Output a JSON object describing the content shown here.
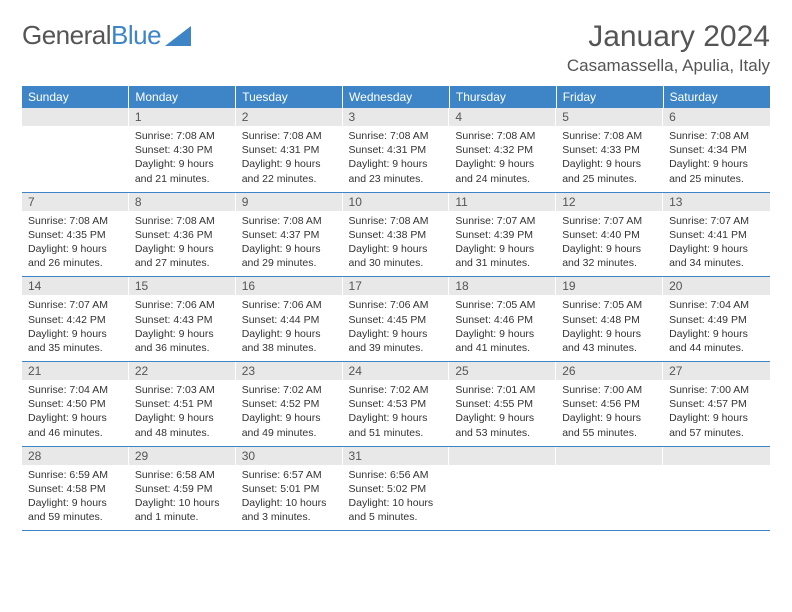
{
  "logo": {
    "text1": "General",
    "text2": "Blue"
  },
  "header": {
    "month_title": "January 2024",
    "location": "Casamassella, Apulia, Italy"
  },
  "colors": {
    "header_bg": "#3d85c6",
    "header_text": "#ffffff",
    "daynum_bg": "#e8e8e8",
    "row_divider": "#3d85c6",
    "body_text": "#333333"
  },
  "typography": {
    "month_title_fontsize": 30,
    "location_fontsize": 17,
    "dayheader_fontsize": 12,
    "daybody_fontsize": 10.5
  },
  "day_headers": [
    "Sunday",
    "Monday",
    "Tuesday",
    "Wednesday",
    "Thursday",
    "Friday",
    "Saturday"
  ],
  "weeks": [
    [
      {
        "num": "",
        "lines": []
      },
      {
        "num": "1",
        "lines": [
          "Sunrise: 7:08 AM",
          "Sunset: 4:30 PM",
          "Daylight: 9 hours",
          "and 21 minutes."
        ]
      },
      {
        "num": "2",
        "lines": [
          "Sunrise: 7:08 AM",
          "Sunset: 4:31 PM",
          "Daylight: 9 hours",
          "and 22 minutes."
        ]
      },
      {
        "num": "3",
        "lines": [
          "Sunrise: 7:08 AM",
          "Sunset: 4:31 PM",
          "Daylight: 9 hours",
          "and 23 minutes."
        ]
      },
      {
        "num": "4",
        "lines": [
          "Sunrise: 7:08 AM",
          "Sunset: 4:32 PM",
          "Daylight: 9 hours",
          "and 24 minutes."
        ]
      },
      {
        "num": "5",
        "lines": [
          "Sunrise: 7:08 AM",
          "Sunset: 4:33 PM",
          "Daylight: 9 hours",
          "and 25 minutes."
        ]
      },
      {
        "num": "6",
        "lines": [
          "Sunrise: 7:08 AM",
          "Sunset: 4:34 PM",
          "Daylight: 9 hours",
          "and 25 minutes."
        ]
      }
    ],
    [
      {
        "num": "7",
        "lines": [
          "Sunrise: 7:08 AM",
          "Sunset: 4:35 PM",
          "Daylight: 9 hours",
          "and 26 minutes."
        ]
      },
      {
        "num": "8",
        "lines": [
          "Sunrise: 7:08 AM",
          "Sunset: 4:36 PM",
          "Daylight: 9 hours",
          "and 27 minutes."
        ]
      },
      {
        "num": "9",
        "lines": [
          "Sunrise: 7:08 AM",
          "Sunset: 4:37 PM",
          "Daylight: 9 hours",
          "and 29 minutes."
        ]
      },
      {
        "num": "10",
        "lines": [
          "Sunrise: 7:08 AM",
          "Sunset: 4:38 PM",
          "Daylight: 9 hours",
          "and 30 minutes."
        ]
      },
      {
        "num": "11",
        "lines": [
          "Sunrise: 7:07 AM",
          "Sunset: 4:39 PM",
          "Daylight: 9 hours",
          "and 31 minutes."
        ]
      },
      {
        "num": "12",
        "lines": [
          "Sunrise: 7:07 AM",
          "Sunset: 4:40 PM",
          "Daylight: 9 hours",
          "and 32 minutes."
        ]
      },
      {
        "num": "13",
        "lines": [
          "Sunrise: 7:07 AM",
          "Sunset: 4:41 PM",
          "Daylight: 9 hours",
          "and 34 minutes."
        ]
      }
    ],
    [
      {
        "num": "14",
        "lines": [
          "Sunrise: 7:07 AM",
          "Sunset: 4:42 PM",
          "Daylight: 9 hours",
          "and 35 minutes."
        ]
      },
      {
        "num": "15",
        "lines": [
          "Sunrise: 7:06 AM",
          "Sunset: 4:43 PM",
          "Daylight: 9 hours",
          "and 36 minutes."
        ]
      },
      {
        "num": "16",
        "lines": [
          "Sunrise: 7:06 AM",
          "Sunset: 4:44 PM",
          "Daylight: 9 hours",
          "and 38 minutes."
        ]
      },
      {
        "num": "17",
        "lines": [
          "Sunrise: 7:06 AM",
          "Sunset: 4:45 PM",
          "Daylight: 9 hours",
          "and 39 minutes."
        ]
      },
      {
        "num": "18",
        "lines": [
          "Sunrise: 7:05 AM",
          "Sunset: 4:46 PM",
          "Daylight: 9 hours",
          "and 41 minutes."
        ]
      },
      {
        "num": "19",
        "lines": [
          "Sunrise: 7:05 AM",
          "Sunset: 4:48 PM",
          "Daylight: 9 hours",
          "and 43 minutes."
        ]
      },
      {
        "num": "20",
        "lines": [
          "Sunrise: 7:04 AM",
          "Sunset: 4:49 PM",
          "Daylight: 9 hours",
          "and 44 minutes."
        ]
      }
    ],
    [
      {
        "num": "21",
        "lines": [
          "Sunrise: 7:04 AM",
          "Sunset: 4:50 PM",
          "Daylight: 9 hours",
          "and 46 minutes."
        ]
      },
      {
        "num": "22",
        "lines": [
          "Sunrise: 7:03 AM",
          "Sunset: 4:51 PM",
          "Daylight: 9 hours",
          "and 48 minutes."
        ]
      },
      {
        "num": "23",
        "lines": [
          "Sunrise: 7:02 AM",
          "Sunset: 4:52 PM",
          "Daylight: 9 hours",
          "and 49 minutes."
        ]
      },
      {
        "num": "24",
        "lines": [
          "Sunrise: 7:02 AM",
          "Sunset: 4:53 PM",
          "Daylight: 9 hours",
          "and 51 minutes."
        ]
      },
      {
        "num": "25",
        "lines": [
          "Sunrise: 7:01 AM",
          "Sunset: 4:55 PM",
          "Daylight: 9 hours",
          "and 53 minutes."
        ]
      },
      {
        "num": "26",
        "lines": [
          "Sunrise: 7:00 AM",
          "Sunset: 4:56 PM",
          "Daylight: 9 hours",
          "and 55 minutes."
        ]
      },
      {
        "num": "27",
        "lines": [
          "Sunrise: 7:00 AM",
          "Sunset: 4:57 PM",
          "Daylight: 9 hours",
          "and 57 minutes."
        ]
      }
    ],
    [
      {
        "num": "28",
        "lines": [
          "Sunrise: 6:59 AM",
          "Sunset: 4:58 PM",
          "Daylight: 9 hours",
          "and 59 minutes."
        ]
      },
      {
        "num": "29",
        "lines": [
          "Sunrise: 6:58 AM",
          "Sunset: 4:59 PM",
          "Daylight: 10 hours",
          "and 1 minute."
        ]
      },
      {
        "num": "30",
        "lines": [
          "Sunrise: 6:57 AM",
          "Sunset: 5:01 PM",
          "Daylight: 10 hours",
          "and 3 minutes."
        ]
      },
      {
        "num": "31",
        "lines": [
          "Sunrise: 6:56 AM",
          "Sunset: 5:02 PM",
          "Daylight: 10 hours",
          "and 5 minutes."
        ]
      },
      {
        "num": "",
        "lines": []
      },
      {
        "num": "",
        "lines": []
      },
      {
        "num": "",
        "lines": []
      }
    ]
  ]
}
